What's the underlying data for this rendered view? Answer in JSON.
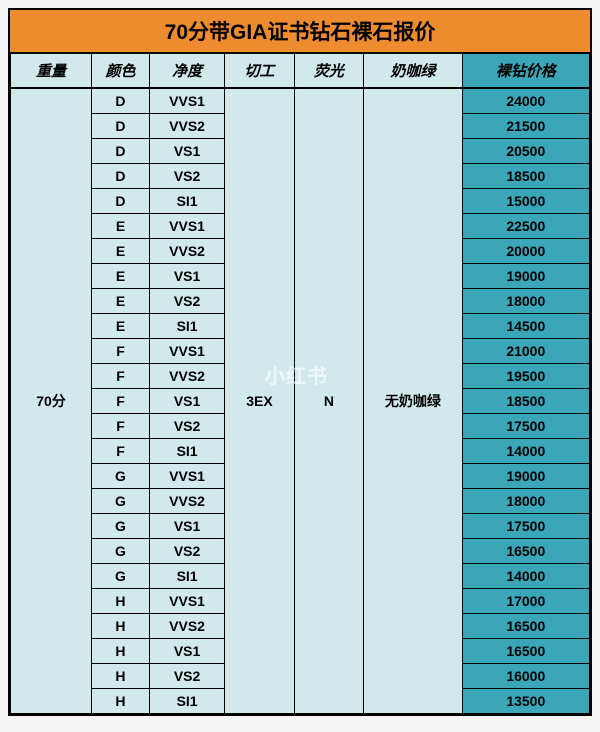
{
  "title": "70分带GIA证书钻石裸石报价",
  "watermark": "小红书",
  "colors": {
    "title_bg": "#ed8b2e",
    "header_bg": "#d2e9eb",
    "body_bg": "#d2e9eb",
    "price_header_bg": "#3aa6b8",
    "price_cell_bg": "#3aa6b8",
    "title_text": "#000000",
    "text": "#000000"
  },
  "columns": [
    {
      "key": "weight",
      "label": "重量"
    },
    {
      "key": "color",
      "label": "颜色"
    },
    {
      "key": "clarity",
      "label": "净度"
    },
    {
      "key": "cut",
      "label": "切工"
    },
    {
      "key": "fluor",
      "label": "荧光"
    },
    {
      "key": "milky",
      "label": "奶咖绿"
    },
    {
      "key": "price",
      "label": "裸钻价格"
    }
  ],
  "merged": {
    "weight": "70分",
    "cut": "3EX",
    "fluor": "N",
    "milky": "无奶咖绿"
  },
  "rows": [
    {
      "color": "D",
      "clarity": "VVS1",
      "price": "24000"
    },
    {
      "color": "D",
      "clarity": "VVS2",
      "price": "21500"
    },
    {
      "color": "D",
      "clarity": "VS1",
      "price": "20500"
    },
    {
      "color": "D",
      "clarity": "VS2",
      "price": "18500"
    },
    {
      "color": "D",
      "clarity": "SI1",
      "price": "15000"
    },
    {
      "color": "E",
      "clarity": "VVS1",
      "price": "22500"
    },
    {
      "color": "E",
      "clarity": "VVS2",
      "price": "20000"
    },
    {
      "color": "E",
      "clarity": "VS1",
      "price": "19000"
    },
    {
      "color": "E",
      "clarity": "VS2",
      "price": "18000"
    },
    {
      "color": "E",
      "clarity": "SI1",
      "price": "14500"
    },
    {
      "color": "F",
      "clarity": "VVS1",
      "price": "21000"
    },
    {
      "color": "F",
      "clarity": "VVS2",
      "price": "19500"
    },
    {
      "color": "F",
      "clarity": "VS1",
      "price": "18500"
    },
    {
      "color": "F",
      "clarity": "VS2",
      "price": "17500"
    },
    {
      "color": "F",
      "clarity": "SI1",
      "price": "14000"
    },
    {
      "color": "G",
      "clarity": "VVS1",
      "price": "19000"
    },
    {
      "color": "G",
      "clarity": "VVS2",
      "price": "18000"
    },
    {
      "color": "G",
      "clarity": "VS1",
      "price": "17500"
    },
    {
      "color": "G",
      "clarity": "VS2",
      "price": "16500"
    },
    {
      "color": "G",
      "clarity": "SI1",
      "price": "14000"
    },
    {
      "color": "H",
      "clarity": "VVS1",
      "price": "17000"
    },
    {
      "color": "H",
      "clarity": "VVS2",
      "price": "16500"
    },
    {
      "color": "H",
      "clarity": "VS1",
      "price": "16500"
    },
    {
      "color": "H",
      "clarity": "VS2",
      "price": "16000"
    },
    {
      "color": "H",
      "clarity": "SI1",
      "price": "13500"
    }
  ]
}
